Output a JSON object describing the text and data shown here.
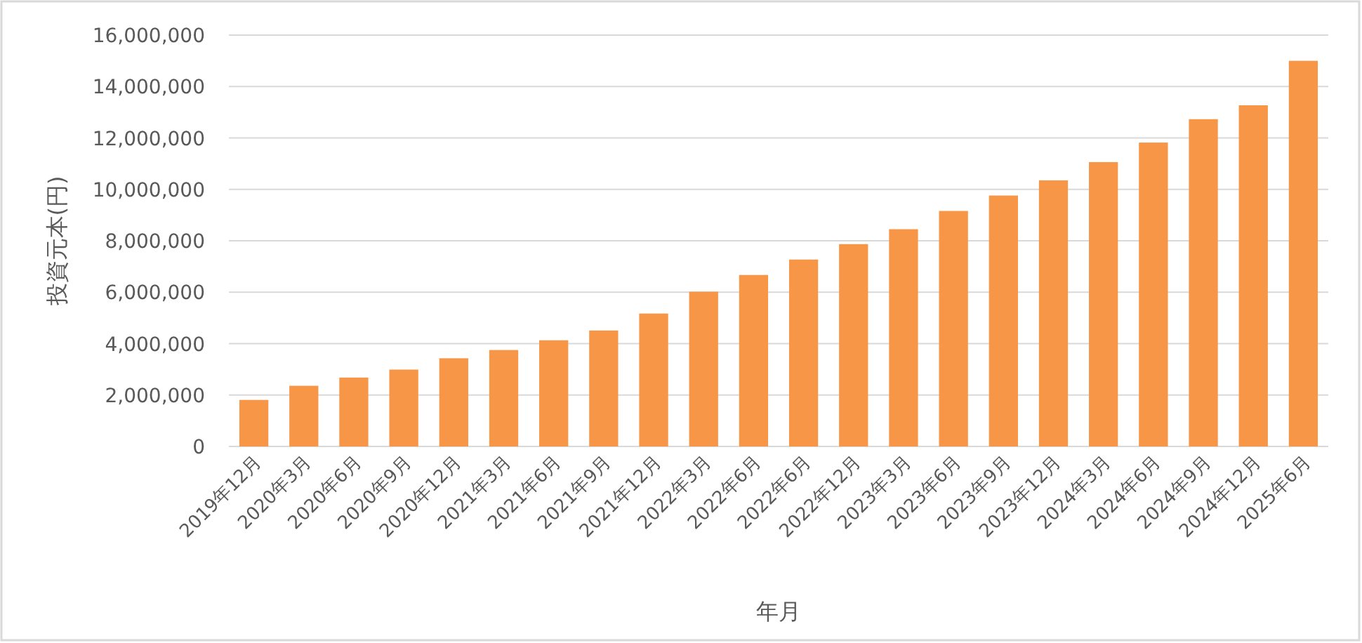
{
  "chart_data": {
    "type": "bar",
    "xlabel": "年月",
    "ylabel": "投資元本(円)",
    "categories": [
      "2019年12月",
      "2020年3月",
      "2020年6月",
      "2020年9月",
      "2020年12月",
      "2021年3月",
      "2021年6月",
      "2021年9月",
      "2021年12月",
      "2022年3月",
      "2022年6月",
      "2022年6月",
      "2022年12月",
      "2023年3月",
      "2023年6月",
      "2023年9月",
      "2023年12月",
      "2024年3月",
      "2024年6月",
      "2024年9月",
      "2024年12月",
      "2025年6月"
    ],
    "values": [
      1810000,
      2360000,
      2680000,
      2990000,
      3430000,
      3750000,
      4130000,
      4510000,
      5170000,
      6020000,
      6670000,
      7270000,
      7870000,
      8450000,
      9160000,
      9760000,
      10350000,
      11060000,
      11820000,
      12730000,
      13270000,
      15000000
    ],
    "color": "#f79646",
    "ylim": [
      0,
      16000000
    ],
    "yticks": [
      {
        "value": 0,
        "label": "0"
      },
      {
        "value": 2000000,
        "label": "2,000,000"
      },
      {
        "value": 4000000,
        "label": "4,000,000"
      },
      {
        "value": 6000000,
        "label": "6,000,000"
      },
      {
        "value": 8000000,
        "label": "8,000,000"
      },
      {
        "value": 10000000,
        "label": "10,000,000"
      },
      {
        "value": 12000000,
        "label": "12,000,000"
      },
      {
        "value": 14000000,
        "label": "14,000,000"
      },
      {
        "value": 16000000,
        "label": "16,000,000"
      }
    ],
    "grid": "y"
  }
}
